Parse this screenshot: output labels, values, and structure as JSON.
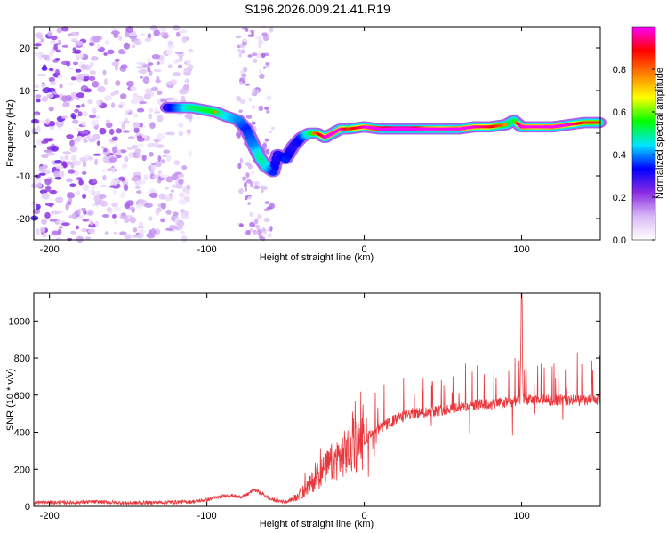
{
  "title": "S196.2026.009.21.41.R19",
  "chart_data": [
    {
      "type": "heatmap",
      "name": "spectrogram",
      "xlabel": "Height of straight line (km)",
      "ylabel": "Frequency (Hz)",
      "xlim": [
        -210,
        150
      ],
      "ylim": [
        -25,
        25
      ],
      "xticks": [
        -200,
        -100,
        0,
        100
      ],
      "yticks": [
        -20,
        -10,
        0,
        10,
        20
      ],
      "colorbar": {
        "label": "Normalized spectral amplitude",
        "range": [
          0,
          1
        ],
        "ticks": [
          0.0,
          0.2,
          0.4,
          0.6,
          0.8
        ],
        "tick_labels": [
          "0.0",
          "0.2",
          "0.4",
          "0.6",
          "0.8"
        ],
        "colors": [
          "#ffffff",
          "#d9b8f5",
          "#8a2be2",
          "#0000ff",
          "#00e5ff",
          "#00ff00",
          "#ffff00",
          "#ff8000",
          "#ff0000",
          "#ff00ff"
        ]
      },
      "ridge": {
        "x": [
          -125,
          -110,
          -95,
          -88,
          -80,
          -75,
          -70,
          -66,
          -62,
          -58,
          -55,
          -50,
          -45,
          -40,
          -35,
          -30,
          -25,
          -20,
          -15,
          -10,
          0,
          10,
          20,
          30,
          40,
          50,
          60,
          70,
          80,
          90,
          95,
          100,
          110,
          120,
          130,
          140,
          150
        ],
        "y": [
          6,
          6,
          5,
          4,
          3,
          1,
          -3,
          -6,
          -8,
          -9,
          -5,
          -6,
          -3,
          -1,
          0,
          0,
          -1,
          0,
          1,
          1,
          1.5,
          1,
          1,
          1,
          1,
          1,
          1,
          1.5,
          1.5,
          2,
          3,
          1.5,
          1.5,
          1.5,
          2,
          2.5,
          2.5
        ],
        "amplitude": [
          0.3,
          0.5,
          0.55,
          0.45,
          0.4,
          0.35,
          0.4,
          0.5,
          0.45,
          0.35,
          0.3,
          0.35,
          0.3,
          0.35,
          0.5,
          0.6,
          0.7,
          0.75,
          0.7,
          0.6,
          0.7,
          0.85,
          0.95,
          0.95,
          0.75,
          0.7,
          0.75,
          0.7,
          0.65,
          0.55,
          0.5,
          0.75,
          0.7,
          0.75,
          0.7,
          0.6,
          0.6
        ]
      },
      "noise_region_x": [
        -210,
        -110
      ]
    },
    {
      "type": "line",
      "name": "snr",
      "xlabel": "Height of straight line (km)",
      "ylabel": "SNR (10 * v/v)",
      "xlim": [
        -210,
        150
      ],
      "ylim": [
        0,
        1150
      ],
      "xticks": [
        -200,
        -100,
        0,
        100
      ],
      "yticks": [
        0,
        200,
        400,
        600,
        800,
        1000
      ],
      "color": "#e8383d",
      "series": [
        {
          "name": "SNR",
          "x": [
            -210,
            -190,
            -170,
            -150,
            -130,
            -110,
            -100,
            -95,
            -90,
            -85,
            -80,
            -75,
            -70,
            -65,
            -60,
            -55,
            -50,
            -45,
            -40,
            -35,
            -30,
            -25,
            -20,
            -15,
            -10,
            -5,
            0,
            5,
            10,
            15,
            20,
            25,
            30,
            35,
            40,
            45,
            50,
            55,
            60,
            65,
            70,
            75,
            80,
            85,
            90,
            95,
            99,
            100,
            101,
            105,
            110,
            115,
            120,
            125,
            130,
            135,
            140,
            145,
            150
          ],
          "y": [
            22,
            20,
            24,
            18,
            22,
            25,
            35,
            45,
            55,
            60,
            50,
            60,
            90,
            70,
            40,
            30,
            25,
            40,
            70,
            110,
            160,
            200,
            240,
            270,
            300,
            330,
            360,
            390,
            420,
            445,
            470,
            485,
            500,
            505,
            510,
            515,
            520,
            530,
            535,
            540,
            545,
            550,
            550,
            555,
            560,
            565,
            570,
            1160,
            580,
            575,
            570,
            575,
            570,
            575,
            570,
            575,
            570,
            575,
            575
          ]
        }
      ]
    }
  ]
}
